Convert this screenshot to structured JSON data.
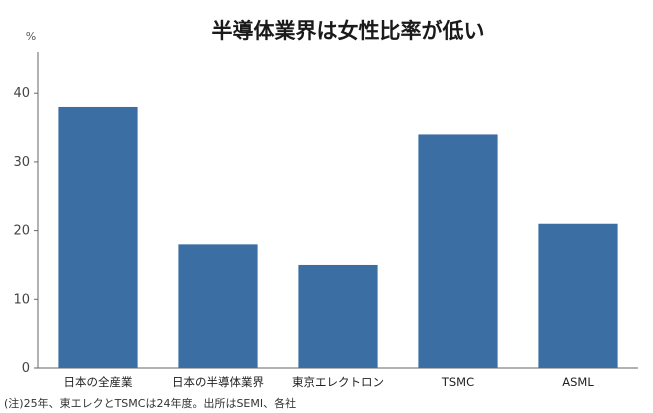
{
  "chart_data": {
    "type": "bar",
    "title": "半導体業界は女性比率が低い",
    "unit": "%",
    "categories": [
      "日本の全産業",
      "日本の半導体業界",
      "東京エレクトロン",
      "TSMC",
      "ASML"
    ],
    "values": [
      38,
      18,
      15,
      34,
      21
    ],
    "yticks": [
      0,
      10,
      20,
      30,
      40
    ],
    "ylim": [
      0,
      46
    ],
    "bar_color": "#3b6fa3",
    "grid": false
  },
  "note": "(注)25年、東エレクとTSMCは24年度。出所はSEMI、各社"
}
